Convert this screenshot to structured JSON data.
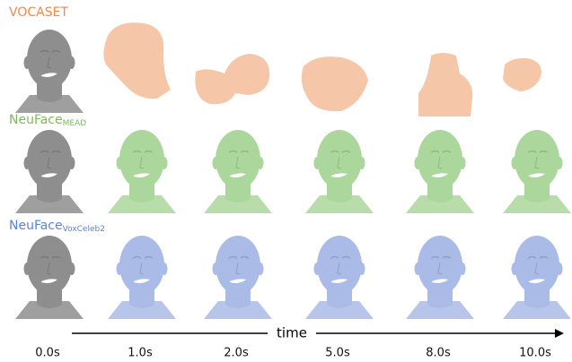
{
  "rows": [
    {
      "label": "VOCASET",
      "label_color": "#f0884a",
      "mesh_color": "#f5c6a8"
    },
    {
      "label": "NeuFace",
      "subscript": "MEAD",
      "label_color": "#7fb860",
      "mesh_color": "#abd79c"
    },
    {
      "label": "NeuFace",
      "subscript": "VoxCeleb2",
      "label_color": "#5b84d6",
      "mesh_color": "#aabbe8"
    }
  ],
  "axis": {
    "label": "time"
  },
  "times": [
    "0.0s",
    "1.0s",
    "2.0s",
    "5.0s",
    "8.0s",
    "10.0s"
  ]
}
